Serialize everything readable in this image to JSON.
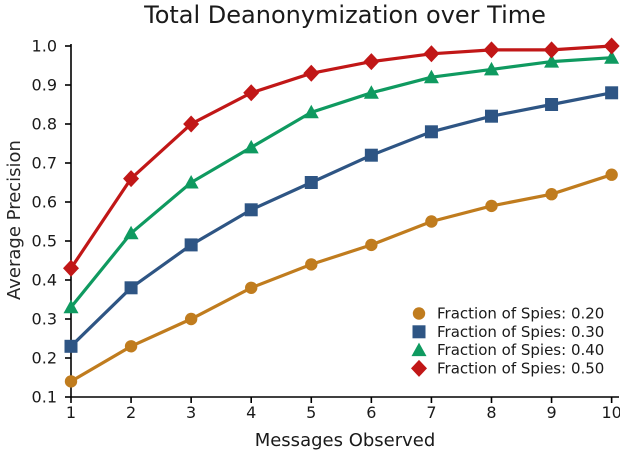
{
  "figure": {
    "title": "Total Deanonymization over Time",
    "xlabel": "Messages Observed",
    "ylabel": "Average Precision",
    "background_color": "#ffffff",
    "text_color": "#1a1a1a",
    "axis_color": "#000000"
  },
  "chart_data": {
    "type": "line",
    "title": "Total Deanonymization over Time",
    "xlabel": "Messages Observed",
    "ylabel": "Average Precision",
    "x": [
      1,
      2,
      3,
      4,
      5,
      6,
      7,
      8,
      9,
      10
    ],
    "xlim": [
      1,
      10
    ],
    "ylim": [
      0.1,
      1.0
    ],
    "xtick_labels": [
      "1",
      "2",
      "3",
      "4",
      "5",
      "6",
      "7",
      "8",
      "9",
      "10"
    ],
    "ytick_labels": [
      "0.1",
      "0.2",
      "0.3",
      "0.4",
      "0.5",
      "0.6",
      "0.7",
      "0.8",
      "0.9",
      "1.0"
    ],
    "yticks": [
      0.1,
      0.2,
      0.3,
      0.4,
      0.5,
      0.6,
      0.7,
      0.8,
      0.9,
      1.0
    ],
    "grid": false,
    "legend_position": "lower right",
    "series": [
      {
        "name": "Fraction of Spies: 0.20",
        "marker": "circle",
        "color": "#C07C1E",
        "values": [
          0.14,
          0.23,
          0.3,
          0.38,
          0.44,
          0.49,
          0.55,
          0.59,
          0.62,
          0.67
        ]
      },
      {
        "name": "Fraction of Spies: 0.30",
        "marker": "square",
        "color": "#2E5584",
        "values": [
          0.23,
          0.38,
          0.49,
          0.58,
          0.65,
          0.72,
          0.78,
          0.82,
          0.85,
          0.88
        ]
      },
      {
        "name": "Fraction of Spies: 0.40",
        "marker": "triangle",
        "color": "#0F9A60",
        "values": [
          0.33,
          0.52,
          0.65,
          0.74,
          0.83,
          0.88,
          0.92,
          0.94,
          0.96,
          0.97
        ]
      },
      {
        "name": "Fraction of Spies: 0.50",
        "marker": "diamond",
        "color": "#C11717",
        "values": [
          0.43,
          0.66,
          0.8,
          0.88,
          0.93,
          0.96,
          0.98,
          0.99,
          0.99,
          1.0
        ]
      }
    ]
  }
}
